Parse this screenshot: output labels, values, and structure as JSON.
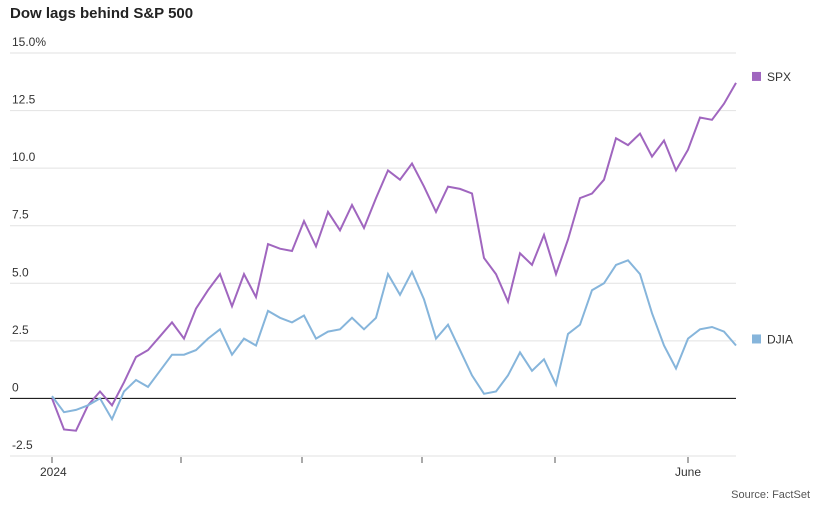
{
  "chart_data": {
    "type": "line",
    "title": "Dow lags behind S&P 500",
    "source": "Source: FactSet",
    "categories": [
      "2024",
      null,
      null,
      null,
      null,
      null,
      null,
      null,
      null,
      null,
      null,
      null,
      null,
      null,
      null,
      null,
      null,
      null,
      null,
      null,
      null,
      null,
      null,
      null,
      null,
      null,
      null,
      null,
      null,
      null,
      null,
      null,
      null,
      null,
      null,
      null,
      null,
      null,
      null,
      null,
      null,
      null,
      null,
      null,
      null,
      null,
      null,
      null,
      null,
      null,
      null,
      null,
      null,
      "June",
      null,
      null,
      null,
      null
    ],
    "series": [
      {
        "name": "SPX",
        "color": "#a066bf",
        "values": [
          0,
          -1.35,
          -1.4,
          -0.3,
          0.3,
          -0.3,
          0.7,
          1.8,
          2.1,
          2.7,
          3.3,
          2.6,
          3.9,
          4.7,
          5.4,
          4.0,
          5.4,
          4.4,
          6.7,
          6.5,
          6.4,
          7.7,
          6.6,
          8.1,
          7.3,
          8.4,
          7.4,
          8.7,
          9.9,
          9.5,
          10.2,
          9.2,
          8.1,
          9.2,
          9.1,
          8.9,
          6.1,
          5.4,
          4.2,
          6.3,
          5.8,
          7.1,
          5.4,
          6.9,
          8.7,
          8.9,
          9.5,
          11.3,
          11.0,
          11.5,
          10.5,
          11.2,
          9.9,
          10.8,
          12.2,
          12.1,
          12.8,
          13.7
        ]
      },
      {
        "name": "DJIA",
        "color": "#86b5db",
        "values": [
          0.1,
          -0.6,
          -0.5,
          -0.3,
          0,
          -0.9,
          0.3,
          0.8,
          0.5,
          1.2,
          1.9,
          1.9,
          2.1,
          2.6,
          3.0,
          1.9,
          2.6,
          2.3,
          3.8,
          3.5,
          3.3,
          3.6,
          2.6,
          2.9,
          3.0,
          3.5,
          3.0,
          3.5,
          5.4,
          4.5,
          5.5,
          4.3,
          2.6,
          3.2,
          2.1,
          1.0,
          0.2,
          0.3,
          1.0,
          2.0,
          1.2,
          1.7,
          0.6,
          2.8,
          3.2,
          4.7,
          5.0,
          5.8,
          6.0,
          5.4,
          3.7,
          2.3,
          1.3,
          2.6,
          3.0,
          3.1,
          2.9,
          2.3
        ]
      }
    ],
    "ylim": [
      -2.5,
      15
    ],
    "yticks": [
      {
        "value": 15,
        "label": "15.0%"
      },
      12.5,
      {
        "value": 10,
        "label": "10.0"
      },
      7.5,
      {
        "value": 5,
        "label": "5.0"
      },
      2.5,
      0,
      -2.5
    ],
    "grid": true
  }
}
